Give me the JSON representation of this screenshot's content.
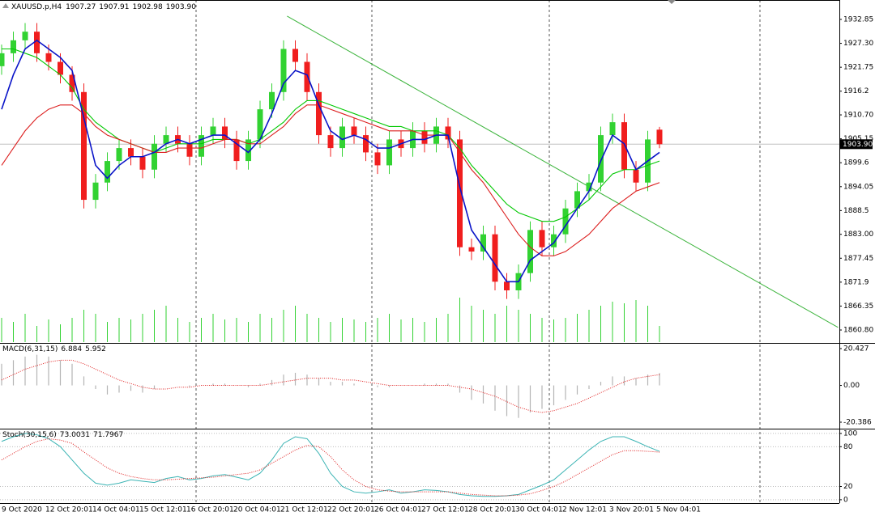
{
  "chart_data": [
    {
      "type": "candlestick",
      "title": "XAUUSD.p,H4",
      "header_labels": [
        "1907.27",
        "1907.91",
        "1902.98",
        "1903.90"
      ],
      "categories": [
        "9 Oct 2020",
        null,
        null,
        null,
        "12 Oct 20:01",
        null,
        null,
        null,
        "14 Oct 04:01",
        null,
        null,
        null,
        "15 Oct 12:01",
        null,
        null,
        null,
        "16 Oct 20:01",
        null,
        null,
        null,
        "20 Oct 04:01",
        null,
        null,
        null,
        "21 Oct 12:01",
        null,
        null,
        null,
        "22 Oct 20:01",
        null,
        null,
        null,
        "26 Oct 04:01",
        null,
        null,
        null,
        "27 Oct 12:01",
        null,
        null,
        null,
        "28 Oct 20:01",
        null,
        null,
        null,
        "30 Oct 04:01",
        null,
        null,
        null,
        "2 Nov 12:01",
        null,
        null,
        null,
        "3 Nov 20:01",
        null,
        null,
        null,
        "5 Nov 04:01"
      ],
      "open": [
        1922,
        1925,
        1928,
        1930,
        1925,
        1923,
        1920,
        1916,
        1891,
        1895,
        1900,
        1903,
        1901,
        1898,
        1904,
        1906,
        1904,
        1901,
        1906,
        1908,
        1905,
        1900,
        1905,
        1912,
        1916,
        1926,
        1923,
        1916,
        1906,
        1903,
        1908,
        1906,
        1902,
        1899,
        1905,
        1903,
        1907,
        1904,
        1908,
        1905,
        1880,
        1879,
        1883,
        1872,
        1870,
        1874,
        1884,
        1880,
        1883,
        1889,
        1893,
        1895,
        1906,
        1909,
        1898,
        1895,
        1907.27
      ],
      "high": [
        1927,
        1930,
        1932,
        1932,
        1927,
        1925,
        1922,
        1918,
        1897,
        1902,
        1905,
        1905,
        1903,
        1906,
        1908,
        1908,
        1906,
        1908,
        1910,
        1910,
        1907,
        1907,
        1914,
        1918,
        1928,
        1928,
        1925,
        1918,
        1908,
        1910,
        1910,
        1908,
        1904,
        1907,
        1907,
        1909,
        1909,
        1910,
        1910,
        1907,
        1882,
        1885,
        1885,
        1874,
        1876,
        1886,
        1886,
        1885,
        1891,
        1895,
        1897,
        1908,
        1911,
        1911,
        1900,
        1907,
        1907.91
      ],
      "low": [
        1920,
        1923,
        1926,
        1923,
        1921,
        1918,
        1914,
        1889,
        1889,
        1893,
        1898,
        1899,
        1896,
        1896,
        1902,
        1902,
        1899,
        1899,
        1904,
        1903,
        1898,
        1898,
        1903,
        1910,
        1914,
        1921,
        1914,
        1904,
        1901,
        1901,
        1904,
        1900,
        1897,
        1897,
        1901,
        1901,
        1902,
        1902,
        1903,
        1878,
        1877,
        1877,
        1870,
        1868,
        1868,
        1872,
        1878,
        1878,
        1881,
        1887,
        1891,
        1893,
        1904,
        1896,
        1893,
        1893,
        1902.98
      ],
      "close": [
        1925,
        1928,
        1930,
        1925,
        1923,
        1920,
        1916,
        1891,
        1895,
        1900,
        1903,
        1901,
        1898,
        1904,
        1906,
        1904,
        1901,
        1906,
        1908,
        1905,
        1900,
        1905,
        1912,
        1916,
        1926,
        1923,
        1916,
        1906,
        1903,
        1908,
        1906,
        1902,
        1899,
        1905,
        1903,
        1907,
        1904,
        1908,
        1905,
        1880,
        1879,
        1883,
        1872,
        1870,
        1874,
        1884,
        1880,
        1883,
        1889,
        1893,
        1895,
        1906,
        1909,
        1898,
        1895,
        1905,
        1903.9
      ],
      "last_price_label": "1903.90",
      "up_color": "#32d232",
      "down_color": "#f01e1e",
      "lines": [
        {
          "color": "#00c800",
          "values": [
            1926,
            1926,
            1925,
            1924,
            1922,
            1920,
            1917,
            1912,
            1909,
            1907,
            1905,
            1904,
            1903,
            1902,
            1903,
            1904,
            1904,
            1904,
            1905,
            1905,
            1905,
            1904,
            1905,
            1907,
            1909,
            1912,
            1914,
            1914,
            1913,
            1912,
            1911,
            1910,
            1909,
            1908,
            1908,
            1907,
            1907,
            1907,
            1906,
            1903,
            1899,
            1896,
            1893,
            1890,
            1888,
            1887,
            1886,
            1886,
            1887,
            1889,
            1891,
            1894,
            1897,
            1898,
            1898,
            1899,
            1900
          ]
        },
        {
          "color": "#dc1e1e",
          "values": [
            1899,
            1903,
            1907,
            1910,
            1912,
            1913,
            1913,
            1911,
            1908,
            1906,
            1905,
            1904,
            1903,
            1902,
            1902,
            1903,
            1903,
            1903,
            1904,
            1905,
            1905,
            1904,
            1904,
            1906,
            1908,
            1911,
            1913,
            1913,
            1912,
            1911,
            1910,
            1909,
            1908,
            1907,
            1907,
            1907,
            1906,
            1906,
            1906,
            1902,
            1898,
            1895,
            1891,
            1887,
            1883,
            1880,
            1878,
            1878,
            1879,
            1881,
            1883,
            1886,
            1889,
            1891,
            1893,
            1894,
            1895
          ]
        },
        {
          "color": "#0a14c8",
          "values": [
            1912,
            1920,
            1926,
            1928,
            1926,
            1924,
            1921,
            1910,
            1899,
            1896,
            1899,
            1901,
            1901,
            1902,
            1904,
            1905,
            1904,
            1905,
            1906,
            1906,
            1904,
            1902,
            1905,
            1911,
            1918,
            1921,
            1920,
            1913,
            1907,
            1905,
            1906,
            1905,
            1903,
            1903,
            1904,
            1905,
            1905,
            1906,
            1906,
            1894,
            1884,
            1880,
            1876,
            1872,
            1872,
            1877,
            1879,
            1881,
            1885,
            1889,
            1893,
            1900,
            1906,
            1904,
            1898,
            1900,
            1902
          ]
        }
      ],
      "volume": {
        "color": "#32d232",
        "values": [
          30,
          25,
          35,
          20,
          28,
          22,
          30,
          40,
          35,
          25,
          30,
          28,
          35,
          40,
          45,
          30,
          25,
          30,
          35,
          28,
          30,
          25,
          35,
          30,
          40,
          45,
          35,
          30,
          25,
          30,
          28,
          25,
          30,
          35,
          28,
          30,
          25,
          30,
          35,
          55,
          45,
          40,
          35,
          45,
          40,
          35,
          30,
          28,
          30,
          35,
          40,
          45,
          50,
          48,
          52,
          45,
          20
        ]
      },
      "trendline": {
        "color": "#3cb43c",
        "from": [
          24.3,
          1933.6
        ],
        "to": [
          71.2,
          1861.4
        ]
      },
      "ylim": [
        1857.99,
        1937.35
      ],
      "yticks": [
        1932.85,
        {
          "value": 1927.3,
          "label": "1927.30"
        },
        1921.75,
        1916.2,
        {
          "value": 1910.7,
          "label": "1910.70"
        },
        1905.15,
        1899.6,
        1894.05,
        1888.5,
        {
          "value": 1883,
          "label": "1883.00"
        },
        1877.45,
        1871.9,
        1866.35,
        {
          "value": 1860.8,
          "label": "1860.80"
        }
      ]
    },
    {
      "type": "macd",
      "title": "MACD(6,31,15)",
      "histogram": {
        "color": "#b4b4b4",
        "values": [
          12,
          14,
          16,
          17,
          16,
          14,
          12,
          5,
          -2,
          -5,
          -4,
          -3,
          -4,
          -2,
          0,
          0,
          -1,
          0,
          1,
          1,
          0,
          -1,
          1,
          3,
          6,
          7,
          6,
          4,
          2,
          2,
          1,
          0,
          -1,
          -1,
          0,
          0,
          1,
          1,
          1,
          -4,
          -8,
          -10,
          -14,
          -17,
          -18,
          -15,
          -13,
          -11,
          -8,
          -5,
          -2,
          2,
          5,
          5,
          4,
          6,
          6.884
        ]
      },
      "signal": {
        "color": "#e02020",
        "values": [
          3,
          6,
          9,
          11,
          13,
          14,
          14,
          12,
          9,
          6,
          3,
          1,
          -1,
          -2,
          -2,
          -1,
          -1,
          0,
          0,
          0,
          0,
          0,
          0,
          1,
          2,
          3,
          4,
          4,
          4,
          3,
          3,
          2,
          1,
          0,
          0,
          0,
          0,
          0,
          0,
          -1,
          -2,
          -4,
          -6,
          -9,
          -12,
          -14,
          -15,
          -14,
          -12,
          -10,
          -7,
          -4,
          -1,
          2,
          4,
          5,
          5.952
        ]
      },
      "ylim": [
        -23.52,
        23.12
      ],
      "yticks": [
        20.427,
        {
          "value": 0,
          "label": "0.00"
        },
        -20.386
      ]
    },
    {
      "type": "stochastic",
      "title": "Stoch(30,15,6)",
      "series": [
        {
          "color": "#3cb4b4",
          "values": [
            88,
            95,
            100,
            98,
            92,
            80,
            60,
            40,
            25,
            22,
            25,
            30,
            28,
            26,
            32,
            35,
            30,
            32,
            36,
            38,
            34,
            30,
            40,
            60,
            85,
            95,
            92,
            70,
            40,
            20,
            12,
            10,
            12,
            15,
            10,
            12,
            15,
            14,
            12,
            8,
            6,
            5,
            5,
            6,
            8,
            15,
            22,
            30,
            45,
            60,
            75,
            88,
            95,
            95,
            88,
            80,
            73.0031
          ]
        },
        {
          "color": "#e02020",
          "dashed": true,
          "values": [
            60,
            70,
            80,
            88,
            92,
            90,
            85,
            72,
            60,
            48,
            40,
            35,
            32,
            30,
            30,
            31,
            32,
            33,
            34,
            36,
            38,
            40,
            45,
            55,
            65,
            75,
            82,
            80,
            65,
            45,
            30,
            20,
            15,
            13,
            12,
            12,
            12,
            12,
            12,
            10,
            8,
            7,
            6,
            6,
            7,
            9,
            14,
            20,
            28,
            38,
            48,
            58,
            68,
            74,
            74,
            73,
            71.7967
          ]
        }
      ],
      "ylim": [
        -5,
        106
      ],
      "yticks": [
        100,
        80,
        20,
        0
      ]
    }
  ]
}
